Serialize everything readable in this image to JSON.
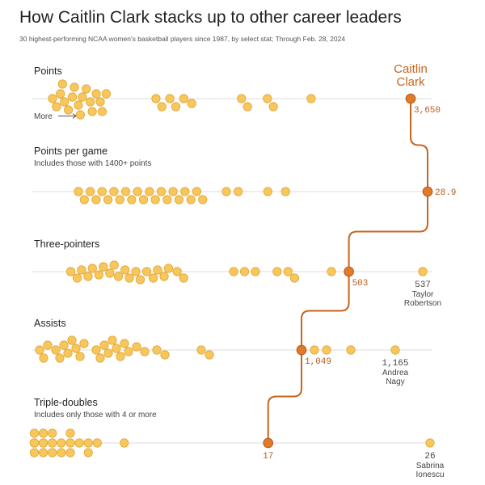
{
  "header": {
    "title": "How Caitlin Clark stacks up to other career leaders",
    "subtitle": "30 highest-performing NCAA women's basketball players since 1987, by select stat; Through Feb. 28, 2024"
  },
  "highlight": {
    "name_line1": "Caitlin",
    "name_line2": "Clark",
    "color": "#e07b2a"
  },
  "more_label": "More",
  "colors": {
    "dot_fill": "#f7c65c",
    "dot_stroke": "#e0a734",
    "axis": "#dddddd",
    "highlight": "#e07b2a",
    "path": "#c8641c"
  },
  "chart_data": {
    "type": "scatter",
    "title": "How Caitlin Clark stacks up to other career leaders",
    "panels": [
      {
        "label": "Points",
        "note": "",
        "others": [
          2750,
          2760,
          2770,
          2775,
          2780,
          2790,
          2800,
          2805,
          2815,
          2820,
          2825,
          2835,
          2845,
          2850,
          2860,
          2870,
          2875,
          2885,
          3010,
          3025,
          3045,
          3060,
          3080,
          3100,
          3225,
          3240,
          3290,
          3305,
          3400
        ],
        "highlight_value": 3650,
        "highlight_label": "3,650",
        "leader": null
      },
      {
        "label": "Points per game",
        "note": "Includes those with 1400+ points",
        "others": [
          23.0,
          23.1,
          23.2,
          23.3,
          23.4,
          23.5,
          23.6,
          23.7,
          23.8,
          23.9,
          24.0,
          24.1,
          24.2,
          24.3,
          24.4,
          24.5,
          24.6,
          24.7,
          24.8,
          24.9,
          25.0,
          25.1,
          25.5,
          25.7,
          26.2,
          26.5
        ],
        "highlight_value": 28.9,
        "highlight_label": "28.9",
        "leader": null
      },
      {
        "label": "Three-pointers",
        "note": "",
        "others": [
          375,
          378,
          380,
          383,
          385,
          388,
          390,
          393,
          395,
          397,
          400,
          402,
          405,
          407,
          410,
          413,
          415,
          418,
          420,
          424,
          427,
          450,
          455,
          460,
          470,
          475,
          478,
          495
        ],
        "highlight_value": 503,
        "highlight_label": "503",
        "leader": {
          "value": 537,
          "value_label": "537",
          "name_line1": "Taylor",
          "name_line2": "Robertson"
        }
      },
      {
        "label": "Assists",
        "note": "",
        "others": [
          725,
          730,
          735,
          745,
          750,
          755,
          760,
          765,
          770,
          775,
          780,
          795,
          800,
          805,
          810,
          815,
          820,
          825,
          830,
          835,
          845,
          855,
          870,
          880,
          925,
          935,
          1065,
          1080,
          1110
        ],
        "highlight_value": 1049,
        "highlight_label": "1,049",
        "leader": {
          "value": 1165,
          "value_label": "1,165",
          "name_line1": "Andrea",
          "name_line2": "Nagy"
        }
      },
      {
        "label": "Triple-doubles",
        "note": "Includes only those with 4 or more",
        "others": [
          4,
          4,
          4,
          4,
          4,
          4,
          4.5,
          4.5,
          4.5,
          4.5,
          5,
          5,
          5,
          5.5,
          5.5,
          6,
          6,
          6,
          6.5,
          7,
          7,
          7.5,
          9
        ],
        "highlight_value": 17,
        "highlight_label": "17",
        "leader": {
          "value": 26,
          "value_label": "26",
          "name_line1": "Sabrina",
          "name_line2": "Ionescu"
        }
      }
    ]
  }
}
